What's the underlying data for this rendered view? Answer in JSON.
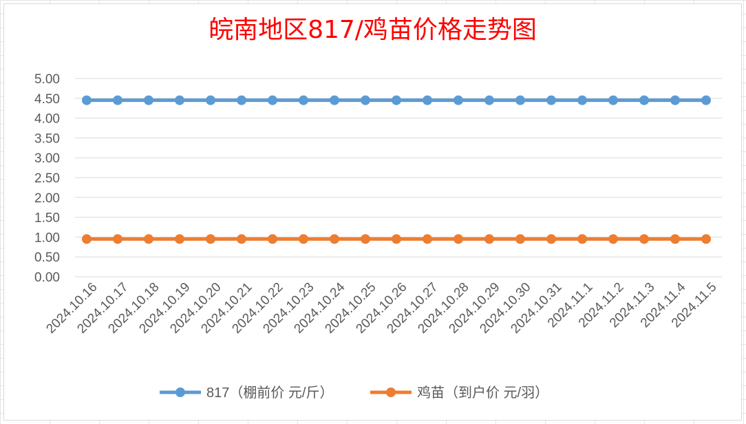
{
  "chart_data": {
    "type": "line",
    "title": "皖南地区817/鸡苗价格走势图",
    "categories": [
      "2024.10.16",
      "2024.10.17",
      "2024.10.18",
      "2024.10.19",
      "2024.10.20",
      "2024.10.21",
      "2024.10.22",
      "2024.10.23",
      "2024.10.24",
      "2024.10.25",
      "2024.10.26",
      "2024.10.27",
      "2024.10.28",
      "2024.10.29",
      "2024.10.30",
      "2024.10.31",
      "2024.11.1",
      "2024.11.2",
      "2024.11.3",
      "2024.11.4",
      "2024.11.5"
    ],
    "series": [
      {
        "name": "817（棚前价 元/斤）",
        "color": "#5b9bd5",
        "values": [
          4.45,
          4.45,
          4.45,
          4.45,
          4.45,
          4.45,
          4.45,
          4.45,
          4.45,
          4.45,
          4.45,
          4.45,
          4.45,
          4.45,
          4.45,
          4.45,
          4.45,
          4.45,
          4.45,
          4.45,
          4.45
        ]
      },
      {
        "name": "鸡苗（到户价 元/羽）",
        "color": "#ed7d31",
        "values": [
          0.95,
          0.95,
          0.95,
          0.95,
          0.95,
          0.95,
          0.95,
          0.95,
          0.95,
          0.95,
          0.95,
          0.95,
          0.95,
          0.95,
          0.95,
          0.95,
          0.95,
          0.95,
          0.95,
          0.95,
          0.95
        ]
      }
    ],
    "ylim": [
      0,
      5
    ],
    "yticks": [
      "0.00",
      "0.50",
      "1.00",
      "1.50",
      "2.00",
      "2.50",
      "3.00",
      "3.50",
      "4.00",
      "4.50",
      "5.00"
    ],
    "grid": true,
    "legend": "bottom"
  }
}
